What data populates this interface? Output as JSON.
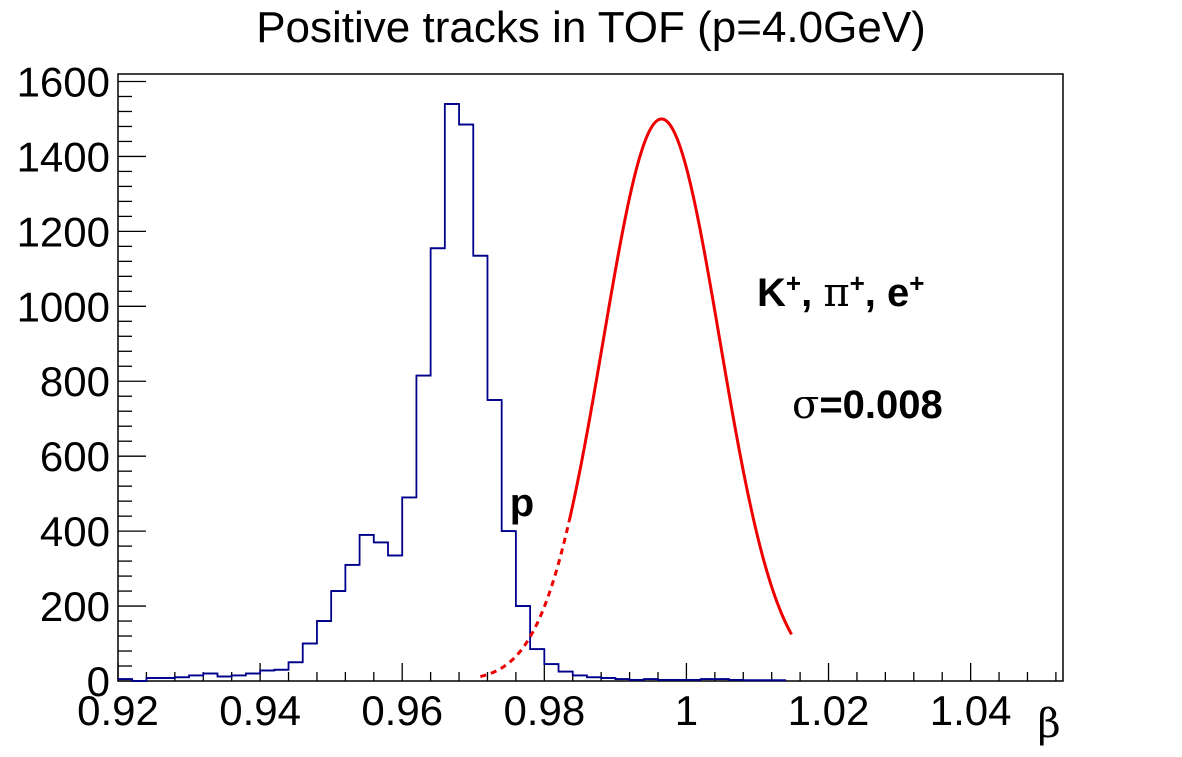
{
  "chart_data": {
    "type": "histogram",
    "title": "Positive tracks in TOF (p=4.0GeV)",
    "xlabel": "β",
    "ylabel": "",
    "xlim": [
      0.92,
      1.053
    ],
    "ylim": [
      0,
      1620
    ],
    "bin_width": 0.002,
    "bin_start": 0.92,
    "xticks": [
      "0.92",
      "0.94",
      "0.96",
      "0.98",
      "1",
      "1.02",
      "1.04"
    ],
    "yticks": [
      "0",
      "200",
      "400",
      "600",
      "800",
      "1000",
      "1200",
      "1400",
      "1600"
    ],
    "histogram": {
      "color": "#00008b",
      "values": [
        5,
        0,
        8,
        8,
        10,
        15,
        20,
        12,
        15,
        20,
        28,
        30,
        50,
        100,
        160,
        240,
        310,
        390,
        370,
        335,
        490,
        815,
        1155,
        1540,
        1485,
        1135,
        750,
        400,
        200,
        85,
        45,
        25,
        15,
        10,
        8,
        5,
        3,
        5,
        3,
        3,
        3,
        5,
        5,
        3,
        2,
        2,
        2
      ]
    },
    "fit": {
      "color": "#ee0000",
      "amplitude": 1500,
      "mean": 0.9965,
      "sigma": 0.0082,
      "solid_range": [
        0.9835,
        1.0148
      ],
      "dashed_range": [
        0.971,
        0.9835
      ]
    },
    "annotations": {
      "proton": "p",
      "species": [
        "K",
        "+",
        ", ",
        "π",
        "+",
        ", e",
        "+"
      ],
      "sigma_symbol": "σ",
      "sigma_value": "=0.008"
    }
  }
}
